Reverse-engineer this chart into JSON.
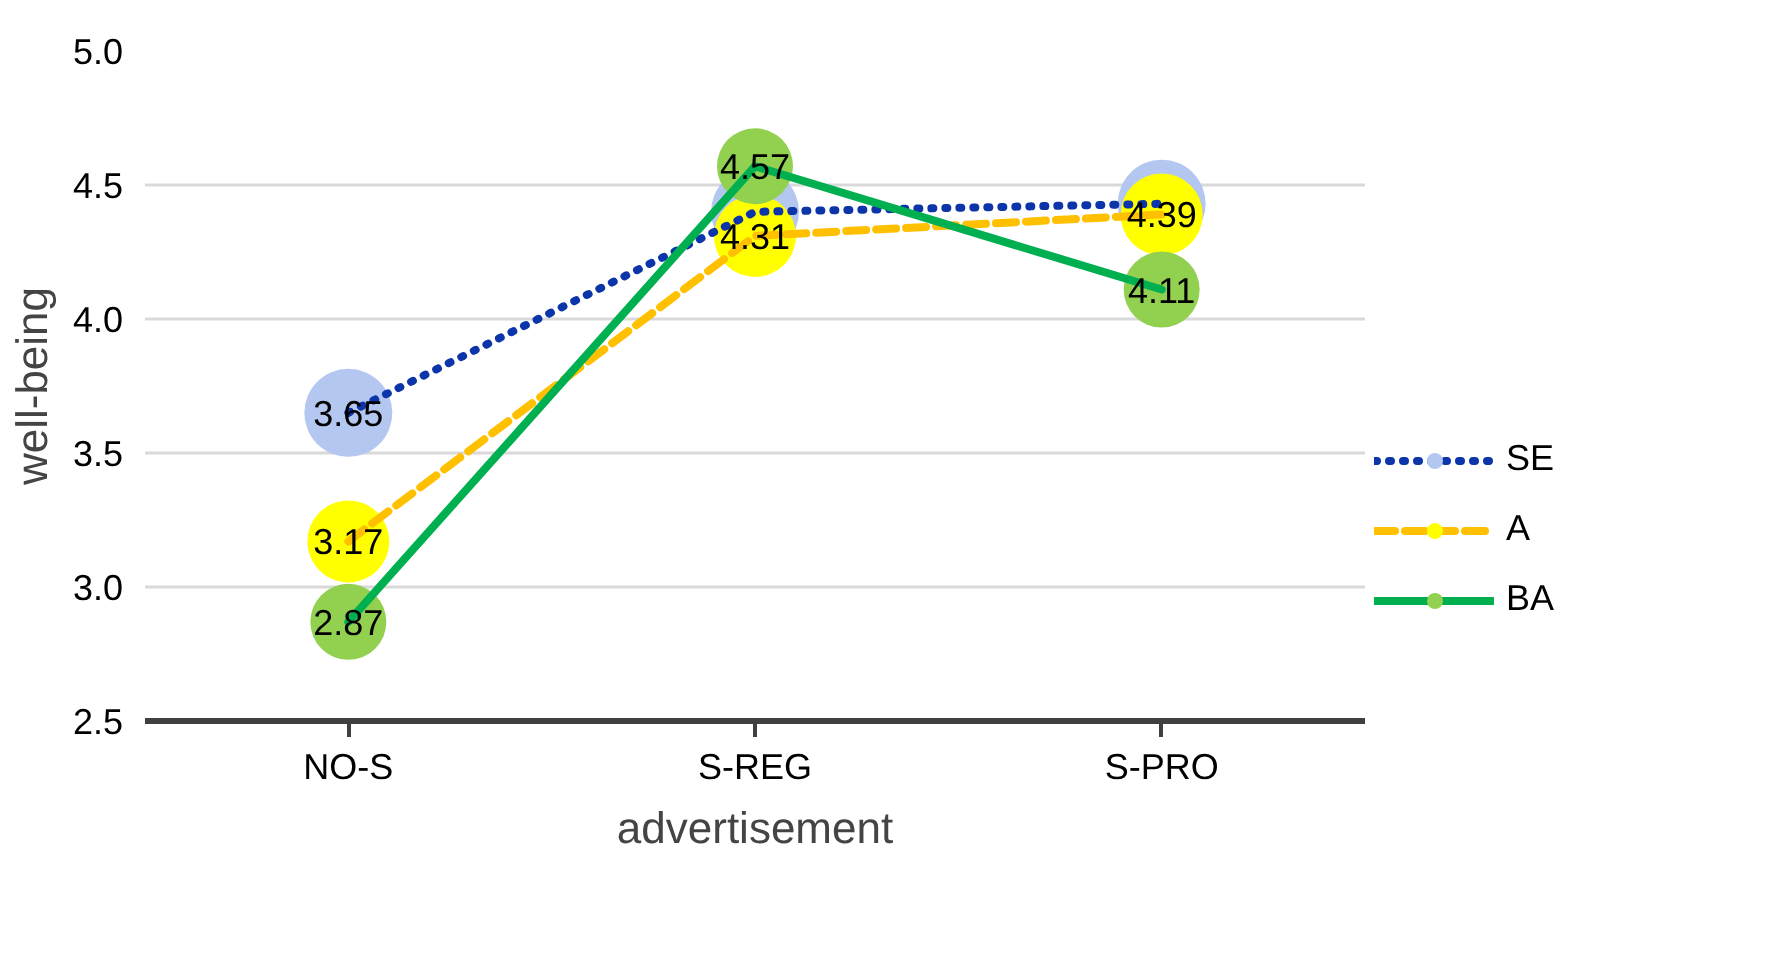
{
  "chart_data": {
    "type": "line",
    "xlabel": "advertisement",
    "ylabel": "well-being",
    "categories": [
      "NO-S",
      "S-REG",
      "S-PRO"
    ],
    "ylim": [
      2.5,
      5.0
    ],
    "yticks": [
      {
        "value": 2.5,
        "label": "2.5"
      },
      {
        "value": 3.0,
        "label": "3.0"
      },
      {
        "value": 3.5,
        "label": "3.5"
      },
      {
        "value": 4.0,
        "label": "4.0"
      },
      {
        "value": 4.5,
        "label": "4.5"
      },
      {
        "value": 5.0,
        "label": "5.0"
      }
    ],
    "grid": "y",
    "legend": "right",
    "marker": "circle",
    "series": [
      {
        "name": "SE",
        "color": "#0b35a8",
        "colors": [
          "#b4c7f0",
          "#b4c7f0",
          "#b4c7f0"
        ],
        "line_style": "dotted",
        "values": [
          3.65,
          4.4,
          4.43
        ],
        "value_labels": [
          "3.65",
          null,
          null
        ]
      },
      {
        "name": "A",
        "color": "#ffc000",
        "colors": [
          "#ffff00",
          "#ffff00",
          "#ffff00"
        ],
        "line_style": "dashed",
        "values": [
          3.17,
          4.31,
          4.39
        ],
        "value_labels": [
          "3.17",
          "4.31",
          "4.39"
        ]
      },
      {
        "name": "BA",
        "color": "#00b050",
        "colors": [
          "#92d050",
          "#92d050",
          "#92d050"
        ],
        "line_style": "solid",
        "values": [
          2.87,
          4.57,
          4.11
        ],
        "value_labels": [
          "2.87",
          "4.57",
          "4.11"
        ]
      }
    ]
  }
}
